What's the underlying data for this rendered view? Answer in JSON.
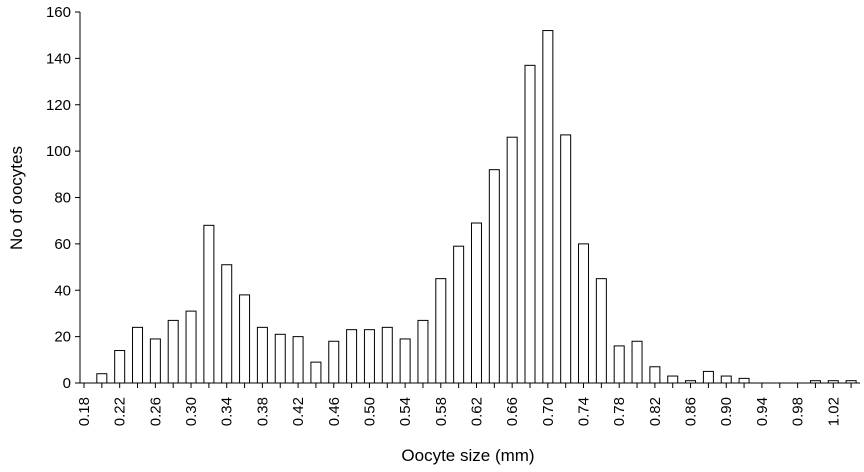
{
  "chart_data": {
    "type": "bar",
    "x_label": "Oocyte size (mm)",
    "y_label": "No of oocytes",
    "categories": [
      "0.18",
      null,
      "0.22",
      null,
      "0.26",
      null,
      "0.30",
      null,
      "0.34",
      null,
      "0.38",
      null,
      "0.42",
      null,
      "0.46",
      null,
      "0.50",
      null,
      "0.54",
      null,
      "0.58",
      null,
      "0.62",
      null,
      "0.66",
      null,
      "0.70",
      null,
      "0.74",
      null,
      "0.78",
      null,
      "0.82",
      null,
      "0.86",
      null,
      "0.90",
      null,
      "0.94",
      null,
      "0.98",
      null,
      "1.02",
      null
    ],
    "values": [
      0,
      4,
      14,
      24,
      19,
      27,
      31,
      68,
      51,
      38,
      24,
      21,
      20,
      9,
      18,
      23,
      23,
      24,
      19,
      27,
      45,
      59,
      69,
      92,
      106,
      137,
      152,
      107,
      60,
      45,
      16,
      18,
      7,
      3,
      1,
      5,
      3,
      2,
      0,
      0,
      0,
      1,
      1,
      1
    ],
    "color": "#ffffff",
    "ylim": [
      0,
      160
    ],
    "yticks": [
      0,
      20,
      40,
      60,
      80,
      100,
      120,
      140,
      160
    ],
    "grid": false
  }
}
